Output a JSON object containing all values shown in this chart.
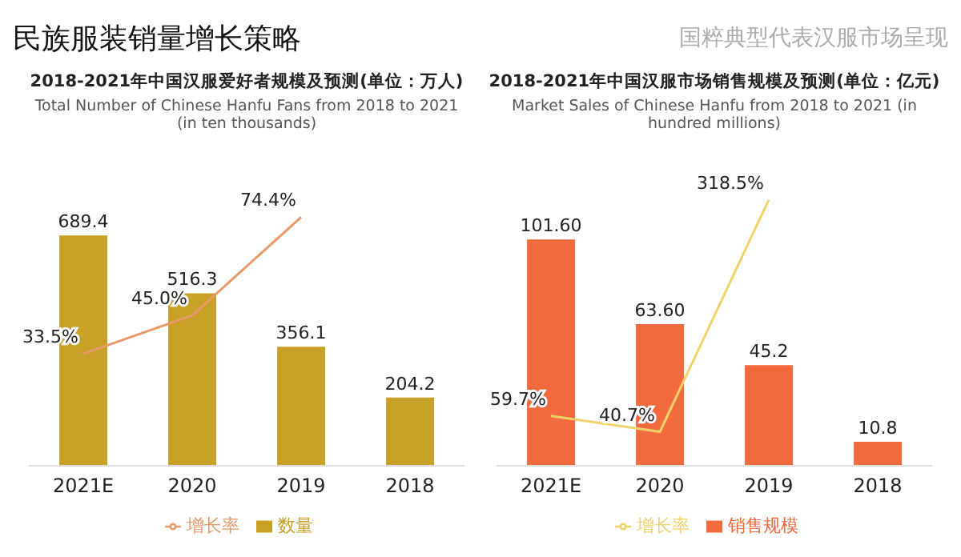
{
  "chart_data": [
    {
      "type": "bar",
      "title": "2018-2021年中国汉服爱好者规模及预测(单位：万人)",
      "subtitle": "Total Number of Chinese Hanfu Fans from 2018 to 2021 (in ten thousands)",
      "annotations": [
        "民族服装销量增长策略",
        "国粹典型代表汉服市场呈现"
      ],
      "categories": [
        "2021E",
        "2020",
        "2019",
        "2018"
      ],
      "legend": "bottom",
      "grid": false,
      "marker": "none",
      "series": [
        {
          "name": "增长率",
          "type": "line",
          "axis": "y2",
          "color": "#e8996a",
          "values": [
            33.5,
            45.0,
            74.4,
            null
          ],
          "value_labels": [
            "33.5%",
            "45.0%",
            "74.4%",
            null
          ]
        },
        {
          "name": "数量",
          "color": "#c9a027",
          "values": [
            689.4,
            516.3,
            356.1,
            204.2
          ],
          "value_labels": [
            "689.4",
            "516.3",
            "356.1",
            "204.2"
          ]
        }
      ]
    },
    {
      "type": "bar",
      "title": "2018-2021年中国汉服市场销售规模及预测(单位：亿元)",
      "subtitle": "Market Sales of Chinese Hanfu from 2018 to 2021 (in hundred millions)",
      "categories": [
        "2021E",
        "2020",
        "2019",
        "2018"
      ],
      "legend": "bottom",
      "grid": false,
      "marker": "none",
      "series": [
        {
          "name": "增长率",
          "type": "line",
          "axis": "y2",
          "color": "#f0d26a",
          "values": [
            59.7,
            40.7,
            318.5,
            null
          ],
          "value_labels": [
            "59.7%",
            "40.7%",
            "318.5%",
            null
          ]
        },
        {
          "name": "销售规模",
          "color": "#f26a3e",
          "values": [
            101.6,
            63.6,
            45.2,
            10.8
          ],
          "value_labels": [
            "101.60",
            "63.60",
            "45.2",
            "10.8"
          ]
        }
      ]
    }
  ]
}
